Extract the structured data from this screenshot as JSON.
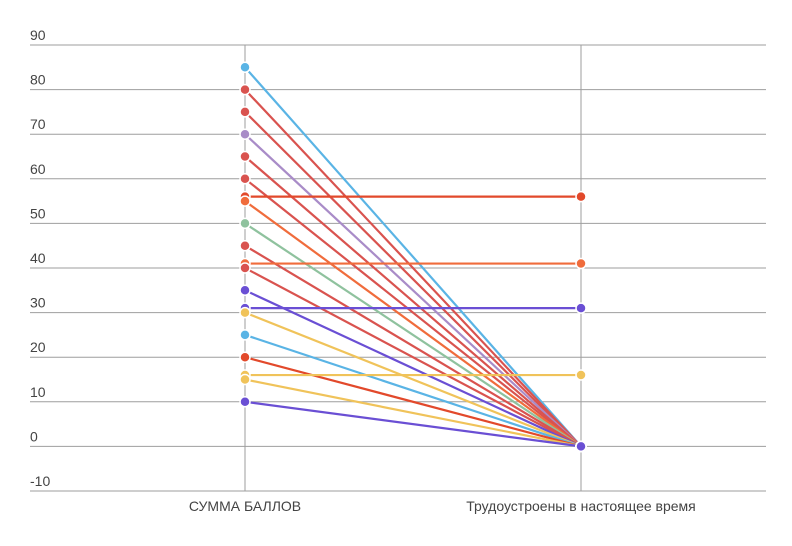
{
  "chart_data": {
    "type": "line",
    "title": "",
    "categories": [
      "СУММА БАЛЛОВ",
      "Трудоустроены в настоящее время"
    ],
    "ylim": [
      -10,
      90
    ],
    "yticks": [
      "90",
      "80",
      "70",
      "60",
      "50",
      "40",
      "30",
      "20",
      "10",
      "0",
      "-10"
    ],
    "ytick_values": [
      90,
      80,
      70,
      60,
      50,
      40,
      30,
      20,
      10,
      0,
      -10
    ],
    "grid": true,
    "series": [
      {
        "values": [
          85,
          0
        ],
        "color": "#5ab4e5"
      },
      {
        "values": [
          80,
          0
        ],
        "color": "#d9534f"
      },
      {
        "values": [
          75,
          0
        ],
        "color": "#d9534f"
      },
      {
        "values": [
          70,
          0
        ],
        "color": "#a98cc8"
      },
      {
        "values": [
          65,
          0
        ],
        "color": "#d9534f"
      },
      {
        "values": [
          60,
          0
        ],
        "color": "#d9534f"
      },
      {
        "values": [
          56,
          56
        ],
        "color": "#e2492b"
      },
      {
        "values": [
          55,
          0
        ],
        "color": "#f06c3c"
      },
      {
        "values": [
          50,
          0
        ],
        "color": "#8fc29e"
      },
      {
        "values": [
          45,
          0
        ],
        "color": "#d9534f"
      },
      {
        "values": [
          41,
          41
        ],
        "color": "#f06c3c"
      },
      {
        "values": [
          40,
          0
        ],
        "color": "#d9534f"
      },
      {
        "values": [
          35,
          0
        ],
        "color": "#6a4fd4"
      },
      {
        "values": [
          31,
          31
        ],
        "color": "#6a4fd4"
      },
      {
        "values": [
          30,
          0
        ],
        "color": "#f0c35a"
      },
      {
        "values": [
          25,
          0
        ],
        "color": "#5ab4e5"
      },
      {
        "values": [
          20,
          0
        ],
        "color": "#e2492b"
      },
      {
        "values": [
          16,
          16
        ],
        "color": "#f0c35a"
      },
      {
        "values": [
          15,
          0
        ],
        "color": "#f0c35a"
      },
      {
        "values": [
          10,
          0
        ],
        "color": "#6a4fd4"
      }
    ]
  }
}
